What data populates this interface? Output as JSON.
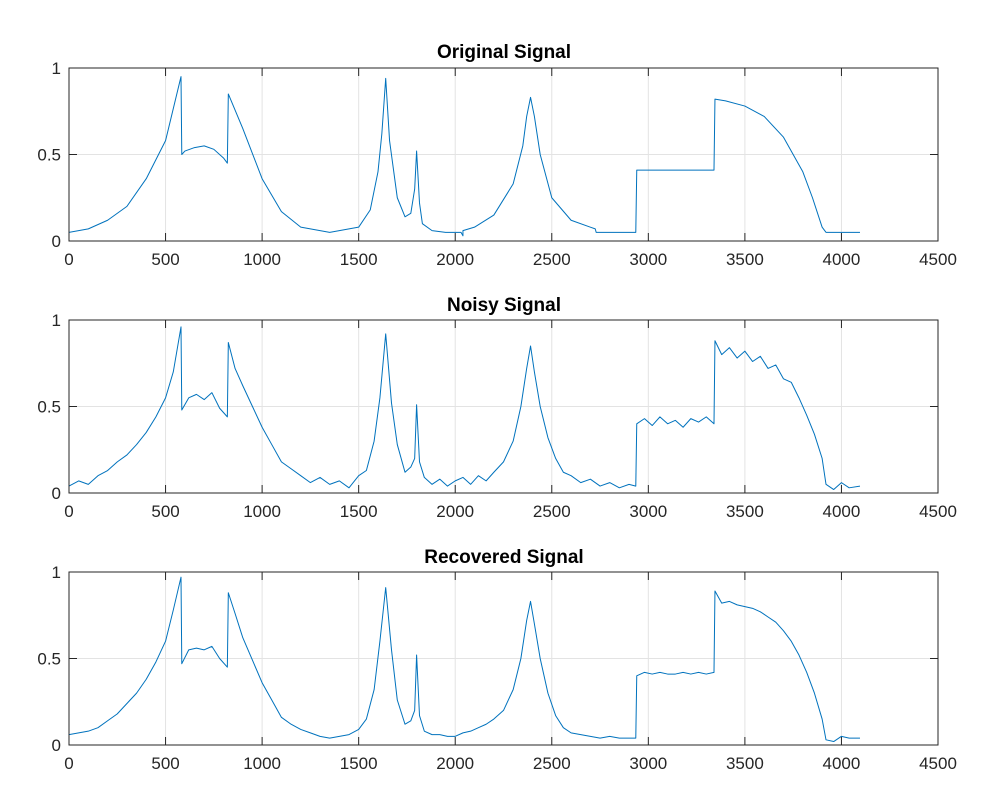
{
  "chart_data": [
    {
      "type": "line",
      "title": "Original Signal",
      "xlim": [
        0,
        4500
      ],
      "ylim": [
        0,
        1
      ],
      "xticks": [
        0,
        500,
        1000,
        1500,
        2000,
        2500,
        3000,
        3500,
        4000,
        4500
      ],
      "yticks": [
        0,
        0.5,
        1
      ],
      "ytick_labels": [
        "0",
        "0.5",
        "1"
      ],
      "grid": true,
      "line_color": "#0072BD",
      "series": [
        {
          "x": [
            0,
            100,
            200,
            300,
            400,
            500,
            580,
            584,
            600,
            650,
            700,
            750,
            800,
            820,
            825,
            900,
            1000,
            1100,
            1200,
            1300,
            1350,
            1400,
            1500,
            1560,
            1600,
            1620,
            1640,
            1660,
            1700,
            1740,
            1770,
            1790,
            1800,
            1815,
            1830,
            1880,
            1950,
            2000,
            2030,
            2040,
            2040,
            2100,
            2200,
            2300,
            2350,
            2370,
            2390,
            2410,
            2440,
            2500,
            2600,
            2700,
            2725,
            2730,
            2800,
            2900,
            2935,
            2940,
            3000,
            3100,
            3200,
            3300,
            3340,
            3345,
            3400,
            3500,
            3600,
            3700,
            3800,
            3850,
            3900,
            3920,
            4000,
            4096
          ],
          "y": [
            0.05,
            0.07,
            0.12,
            0.2,
            0.36,
            0.58,
            0.95,
            0.5,
            0.52,
            0.54,
            0.55,
            0.53,
            0.48,
            0.45,
            0.85,
            0.65,
            0.36,
            0.17,
            0.08,
            0.06,
            0.05,
            0.06,
            0.08,
            0.18,
            0.4,
            0.62,
            0.94,
            0.58,
            0.25,
            0.14,
            0.16,
            0.3,
            0.52,
            0.22,
            0.1,
            0.06,
            0.05,
            0.05,
            0.05,
            0.03,
            0.06,
            0.08,
            0.15,
            0.33,
            0.55,
            0.72,
            0.83,
            0.72,
            0.5,
            0.25,
            0.12,
            0.08,
            0.07,
            0.05,
            0.05,
            0.05,
            0.05,
            0.41,
            0.41,
            0.41,
            0.41,
            0.41,
            0.41,
            0.82,
            0.81,
            0.78,
            0.72,
            0.6,
            0.4,
            0.25,
            0.08,
            0.05,
            0.05,
            0.05
          ]
        }
      ]
    },
    {
      "type": "line",
      "title": "Noisy Signal",
      "xlim": [
        0,
        4500
      ],
      "ylim": [
        0,
        1
      ],
      "xticks": [
        0,
        500,
        1000,
        1500,
        2000,
        2500,
        3000,
        3500,
        4000,
        4500
      ],
      "yticks": [
        0,
        0.5,
        1
      ],
      "ytick_labels": [
        "0",
        "0.5",
        "1"
      ],
      "grid": true,
      "line_color": "#0072BD",
      "series": [
        {
          "x": [
            0,
            50,
            100,
            150,
            200,
            250,
            300,
            350,
            400,
            450,
            500,
            540,
            580,
            584,
            620,
            660,
            700,
            740,
            780,
            820,
            825,
            860,
            900,
            950,
            1000,
            1050,
            1100,
            1150,
            1200,
            1250,
            1300,
            1350,
            1400,
            1450,
            1500,
            1540,
            1580,
            1610,
            1640,
            1670,
            1700,
            1740,
            1770,
            1790,
            1800,
            1815,
            1840,
            1880,
            1920,
            1960,
            2000,
            2040,
            2080,
            2120,
            2160,
            2200,
            2250,
            2300,
            2340,
            2370,
            2390,
            2410,
            2440,
            2480,
            2520,
            2560,
            2600,
            2650,
            2700,
            2750,
            2800,
            2850,
            2900,
            2935,
            2940,
            2980,
            3020,
            3060,
            3100,
            3140,
            3180,
            3220,
            3260,
            3300,
            3340,
            3345,
            3380,
            3420,
            3460,
            3500,
            3540,
            3580,
            3620,
            3660,
            3700,
            3740,
            3780,
            3820,
            3860,
            3900,
            3920,
            3960,
            4000,
            4040,
            4096
          ],
          "y": [
            0.04,
            0.07,
            0.05,
            0.1,
            0.13,
            0.18,
            0.22,
            0.28,
            0.35,
            0.44,
            0.55,
            0.7,
            0.96,
            0.48,
            0.55,
            0.57,
            0.54,
            0.58,
            0.49,
            0.44,
            0.87,
            0.72,
            0.62,
            0.5,
            0.38,
            0.28,
            0.18,
            0.14,
            0.1,
            0.06,
            0.09,
            0.05,
            0.07,
            0.03,
            0.1,
            0.13,
            0.3,
            0.55,
            0.92,
            0.52,
            0.28,
            0.12,
            0.15,
            0.2,
            0.51,
            0.18,
            0.09,
            0.05,
            0.08,
            0.04,
            0.07,
            0.09,
            0.05,
            0.1,
            0.07,
            0.12,
            0.18,
            0.3,
            0.5,
            0.72,
            0.85,
            0.7,
            0.5,
            0.32,
            0.2,
            0.12,
            0.1,
            0.06,
            0.08,
            0.04,
            0.06,
            0.03,
            0.05,
            0.04,
            0.4,
            0.43,
            0.39,
            0.44,
            0.4,
            0.42,
            0.38,
            0.43,
            0.41,
            0.44,
            0.4,
            0.88,
            0.8,
            0.84,
            0.78,
            0.82,
            0.76,
            0.79,
            0.72,
            0.74,
            0.66,
            0.64,
            0.55,
            0.45,
            0.34,
            0.2,
            0.05,
            0.02,
            0.06,
            0.03,
            0.04
          ]
        }
      ]
    },
    {
      "type": "line",
      "title": "Recovered Signal",
      "xlim": [
        0,
        4500
      ],
      "ylim": [
        0,
        1
      ],
      "xticks": [
        0,
        500,
        1000,
        1500,
        2000,
        2500,
        3000,
        3500,
        4000,
        4500
      ],
      "yticks": [
        0,
        0.5,
        1
      ],
      "ytick_labels": [
        "0",
        "0.5",
        "1"
      ],
      "grid": true,
      "line_color": "#0072BD",
      "series": [
        {
          "x": [
            0,
            50,
            100,
            150,
            200,
            250,
            300,
            350,
            400,
            450,
            500,
            540,
            580,
            584,
            620,
            660,
            700,
            740,
            780,
            820,
            825,
            860,
            900,
            950,
            1000,
            1050,
            1100,
            1150,
            1200,
            1250,
            1300,
            1350,
            1400,
            1450,
            1500,
            1540,
            1580,
            1610,
            1640,
            1670,
            1700,
            1740,
            1770,
            1790,
            1800,
            1815,
            1840,
            1880,
            1920,
            1960,
            2000,
            2040,
            2080,
            2120,
            2160,
            2200,
            2250,
            2300,
            2340,
            2370,
            2390,
            2410,
            2440,
            2480,
            2520,
            2560,
            2600,
            2650,
            2700,
            2750,
            2800,
            2850,
            2900,
            2935,
            2940,
            2980,
            3020,
            3060,
            3100,
            3140,
            3180,
            3220,
            3260,
            3300,
            3340,
            3345,
            3380,
            3420,
            3460,
            3500,
            3540,
            3580,
            3620,
            3660,
            3700,
            3740,
            3780,
            3820,
            3860,
            3900,
            3920,
            3960,
            4000,
            4040,
            4096
          ],
          "y": [
            0.06,
            0.07,
            0.08,
            0.1,
            0.14,
            0.18,
            0.24,
            0.3,
            0.38,
            0.48,
            0.6,
            0.78,
            0.97,
            0.47,
            0.55,
            0.56,
            0.55,
            0.57,
            0.5,
            0.45,
            0.88,
            0.76,
            0.62,
            0.49,
            0.36,
            0.26,
            0.16,
            0.12,
            0.09,
            0.07,
            0.05,
            0.04,
            0.05,
            0.06,
            0.09,
            0.15,
            0.32,
            0.6,
            0.91,
            0.55,
            0.26,
            0.12,
            0.14,
            0.2,
            0.52,
            0.17,
            0.08,
            0.06,
            0.06,
            0.05,
            0.05,
            0.07,
            0.08,
            0.1,
            0.12,
            0.15,
            0.2,
            0.32,
            0.5,
            0.72,
            0.83,
            0.7,
            0.5,
            0.3,
            0.17,
            0.1,
            0.07,
            0.06,
            0.05,
            0.04,
            0.05,
            0.04,
            0.04,
            0.04,
            0.4,
            0.42,
            0.41,
            0.42,
            0.41,
            0.41,
            0.42,
            0.41,
            0.42,
            0.41,
            0.42,
            0.89,
            0.82,
            0.83,
            0.81,
            0.8,
            0.79,
            0.77,
            0.74,
            0.71,
            0.66,
            0.6,
            0.52,
            0.42,
            0.3,
            0.15,
            0.03,
            0.02,
            0.05,
            0.04,
            0.04
          ]
        }
      ]
    }
  ]
}
